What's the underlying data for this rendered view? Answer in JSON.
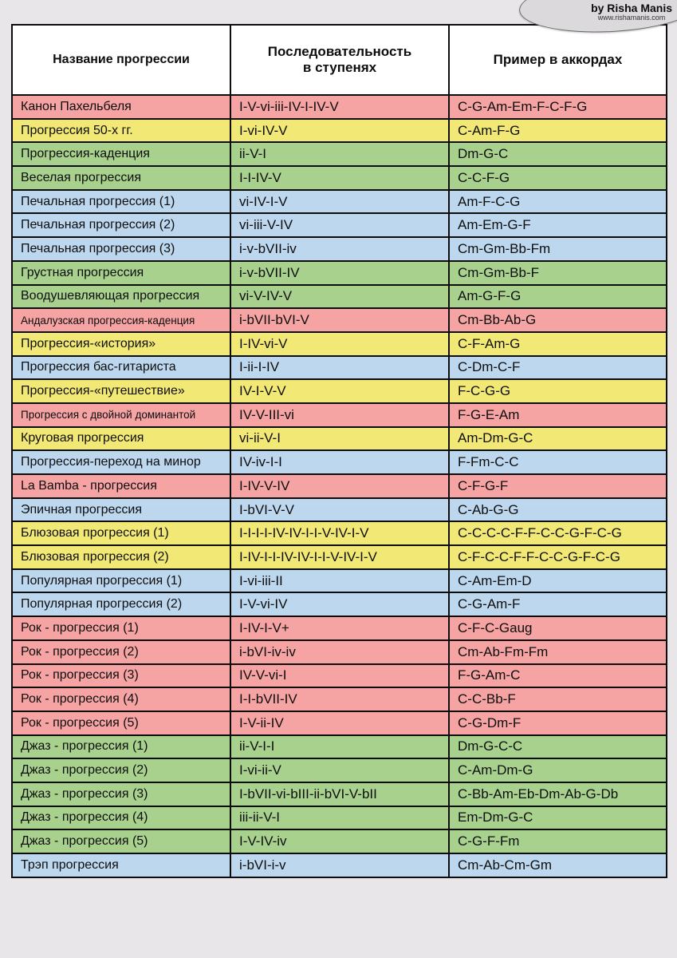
{
  "credit": {
    "name": "by Risha Manis",
    "url": "www.rishamanis.com"
  },
  "palette": {
    "pink": "#f5a3a3",
    "yellow": "#f2e875",
    "green": "#a9d18e",
    "blue": "#bdd7ee"
  },
  "table": {
    "headers": [
      "Название прогрессии",
      "Последовательность\nв ступенях",
      "Пример в аккордах"
    ],
    "rows": [
      {
        "name": "Канон Пахельбеля",
        "degrees": "I-V-vi-iii-IV-I-IV-V",
        "chords": "C-G-Am-Em-F-C-F-G",
        "color": "pink"
      },
      {
        "name": "Прогрессия 50-х гг.",
        "degrees": "I-vi-IV-V",
        "chords": "C-Am-F-G",
        "color": "yellow"
      },
      {
        "name": "Прогрессия-каденция",
        "degrees": "ii-V-I",
        "chords": "Dm-G-C",
        "color": "green"
      },
      {
        "name": "Веселая прогрессия",
        "degrees": "I-I-IV-V",
        "chords": "C-C-F-G",
        "color": "green"
      },
      {
        "name": "Печальная прогрессия (1)",
        "degrees": "vi-IV-I-V",
        "chords": "Am-F-C-G",
        "color": "blue"
      },
      {
        "name": "Печальная прогрессия (2)",
        "degrees": "vi-iii-V-IV",
        "chords": "Am-Em-G-F",
        "color": "blue"
      },
      {
        "name": "Печальная прогрессия (3)",
        "degrees": "i-v-bVII-iv",
        "chords": "Cm-Gm-Bb-Fm",
        "color": "blue"
      },
      {
        "name": "Грустная прогрессия",
        "degrees": "i-v-bVII-IV",
        "chords": "Cm-Gm-Bb-F",
        "color": "green"
      },
      {
        "name": "Воодушевляющая прогрессия",
        "degrees": "vi-V-IV-V",
        "chords": "Am-G-F-G",
        "color": "green"
      },
      {
        "name": "Андалузская прогрессия-каденция",
        "degrees": "i-bVII-bVI-V",
        "chords": "Cm-Bb-Ab-G",
        "color": "pink",
        "small_name": true
      },
      {
        "name": "Прогрессия-«история»",
        "degrees": "I-IV-vi-V",
        "chords": "C-F-Am-G",
        "color": "yellow"
      },
      {
        "name": "Прогрессия бас-гитариста",
        "degrees": "I-ii-I-IV",
        "chords": "C-Dm-C-F",
        "color": "blue"
      },
      {
        "name": "Прогрессия-«путешествие»",
        "degrees": "IV-I-V-V",
        "chords": "F-C-G-G",
        "color": "yellow"
      },
      {
        "name": "Прогрессия с двойной доминантой",
        "degrees": "IV-V-III-vi",
        "chords": "F-G-E-Am",
        "color": "pink",
        "small_name": true
      },
      {
        "name": "Круговая прогрессия",
        "degrees": "vi-ii-V-I",
        "chords": "Am-Dm-G-C",
        "color": "yellow"
      },
      {
        "name": "Прогрессия-переход на минор",
        "degrees": "IV-iv-I-I",
        "chords": "F-Fm-C-C",
        "color": "blue"
      },
      {
        "name": "La Bamba - прогрессия",
        "degrees": "I-IV-V-IV",
        "chords": "C-F-G-F",
        "color": "pink"
      },
      {
        "name": "Эпичная прогрессия",
        "degrees": "I-bVI-V-V",
        "chords": "C-Ab-G-G",
        "color": "blue"
      },
      {
        "name": "Блюзовая прогрессия (1)",
        "degrees": "I-I-I-I-IV-IV-I-I-V-IV-I-V",
        "chords": "C-C-C-C-F-F-C-C-G-F-C-G",
        "color": "yellow"
      },
      {
        "name": "Блюзовая прогрессия (2)",
        "degrees": "I-IV-I-I-IV-IV-I-I-V-IV-I-V",
        "chords": "C-F-C-C-F-F-C-C-G-F-C-G",
        "color": "yellow"
      },
      {
        "name": "Популярная прогрессия (1)",
        "degrees": "I-vi-iii-II",
        "chords": "C-Am-Em-D",
        "color": "blue"
      },
      {
        "name": "Популярная прогрессия (2)",
        "degrees": "I-V-vi-IV",
        "chords": "C-G-Am-F",
        "color": "blue"
      },
      {
        "name": "Рок - прогрессия (1)",
        "degrees": "I-IV-I-V+",
        "chords": "C-F-C-Gaug",
        "color": "pink"
      },
      {
        "name": "Рок - прогрессия (2)",
        "degrees": "i-bVI-iv-iv",
        "chords": "Cm-Ab-Fm-Fm",
        "color": "pink"
      },
      {
        "name": "Рок - прогрессия (3)",
        "degrees": "IV-V-vi-I",
        "chords": "F-G-Am-C",
        "color": "pink"
      },
      {
        "name": "Рок - прогрессия (4)",
        "degrees": "I-I-bVII-IV",
        "chords": "C-C-Bb-F",
        "color": "pink"
      },
      {
        "name": "Рок - прогрессия (5)",
        "degrees": "I-V-ii-IV",
        "chords": "C-G-Dm-F",
        "color": "pink"
      },
      {
        "name": "Джаз - прогрессия (1)",
        "degrees": "ii-V-I-I",
        "chords": "Dm-G-C-C",
        "color": "green"
      },
      {
        "name": "Джаз - прогрессия (2)",
        "degrees": "I-vi-ii-V",
        "chords": "C-Am-Dm-G",
        "color": "green"
      },
      {
        "name": "Джаз - прогрессия (3)",
        "degrees": "I-bVII-vi-bIII-ii-bVI-V-bII",
        "chords": "C-Bb-Am-Eb-Dm-Ab-G-Db",
        "color": "green"
      },
      {
        "name": "Джаз - прогрессия (4)",
        "degrees": "iii-ii-V-I",
        "chords": "Em-Dm-G-C",
        "color": "green"
      },
      {
        "name": "Джаз - прогрессия (5)",
        "degrees": "I-V-IV-iv",
        "chords": "C-G-F-Fm",
        "color": "green"
      },
      {
        "name": "Трэп прогрессия",
        "degrees": "i-bVI-i-v",
        "chords": "Cm-Ab-Cm-Gm",
        "color": "blue"
      }
    ]
  }
}
